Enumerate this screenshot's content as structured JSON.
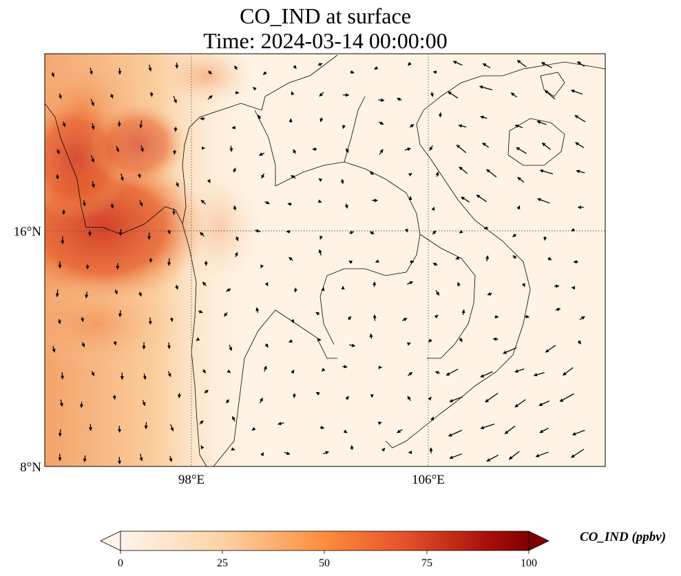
{
  "title": {
    "line1": "CO_IND at surface",
    "line2": "Time: 2024-03-14 00:00:00"
  },
  "axes": {
    "lat_ticks": [
      "16°N",
      "8°N"
    ],
    "lon_ticks": [
      "98°E",
      "106°E"
    ],
    "lat_range": [
      8,
      22
    ],
    "lon_range": [
      93,
      112
    ],
    "gridlines": "dotted"
  },
  "colorbar": {
    "label": "CO_IND (ppbv)",
    "ticks": [
      "0",
      "25",
      "50",
      "75",
      "100"
    ],
    "range": [
      0,
      100
    ],
    "colormap": [
      "#fff5eb",
      "#fdd2a5",
      "#fd8d3c",
      "#e5502a",
      "#a90f0a",
      "#7f0000"
    ],
    "extend": "both"
  },
  "colors": {
    "background_low": "#fef3e4",
    "high": "#d13b27",
    "coast": "#000000"
  }
}
